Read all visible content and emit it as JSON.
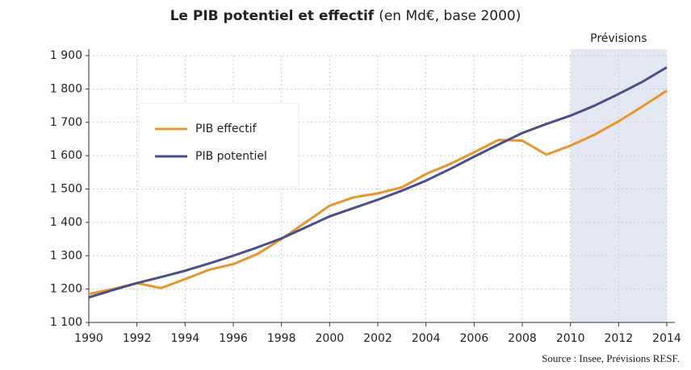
{
  "chart_data": {
    "type": "line",
    "title": "Le PIB potentiel et effectif",
    "subtitle": "(en Md€, base 2000)",
    "source": "Source : Insee, Prévisions RESF.",
    "x": [
      1990,
      1991,
      1992,
      1993,
      1994,
      1995,
      1996,
      1997,
      1998,
      1999,
      2000,
      2001,
      2002,
      2003,
      2004,
      2005,
      2006,
      2007,
      2008,
      2009,
      2010,
      2011,
      2012,
      2013,
      2014
    ],
    "series": [
      {
        "name": "PIB effectif",
        "color": "#e8952e",
        "values": [
          1185,
          1200,
          1218,
          1203,
          1230,
          1258,
          1275,
          1305,
          1350,
          1400,
          1450,
          1475,
          1487,
          1505,
          1545,
          1575,
          1610,
          1647,
          1645,
          1603,
          1630,
          1663,
          1703,
          1748,
          1795
        ]
      },
      {
        "name": "PIB potentiel",
        "color": "#4a4e8a",
        "values": [
          1175,
          1197,
          1218,
          1236,
          1255,
          1277,
          1300,
          1325,
          1352,
          1385,
          1418,
          1443,
          1468,
          1495,
          1525,
          1560,
          1597,
          1633,
          1668,
          1695,
          1720,
          1750,
          1785,
          1822,
          1865
        ]
      }
    ],
    "forecast": {
      "label": "Prévisions",
      "start": 2010,
      "end": 2014,
      "color": "#e4e8f2"
    },
    "xlim": [
      1990,
      2014
    ],
    "xticks": [
      1990,
      1992,
      1994,
      1996,
      1998,
      2000,
      2002,
      2004,
      2006,
      2008,
      2010,
      2012,
      2014
    ],
    "ylim": [
      1100,
      1900
    ],
    "yticks": [
      {
        "value": 1100,
        "label": "1 100"
      },
      {
        "value": 1200,
        "label": "1 200"
      },
      {
        "value": 1300,
        "label": "1 300"
      },
      {
        "value": 1400,
        "label": "1 400"
      },
      {
        "value": 1500,
        "label": "1 500"
      },
      {
        "value": 1600,
        "label": "1 600"
      },
      {
        "value": 1700,
        "label": "1 700"
      },
      {
        "value": 1800,
        "label": "1 800"
      },
      {
        "value": 1900,
        "label": "1 900"
      }
    ],
    "grid": true,
    "legend": "upper left"
  }
}
